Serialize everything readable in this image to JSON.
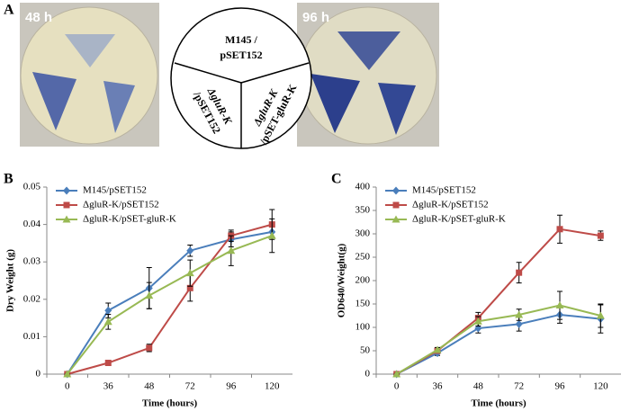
{
  "panel_a": {
    "label": "A",
    "photo_left": "48 h",
    "photo_right": "96 h",
    "sectors": [
      [
        "M145 /",
        "pSET152"
      ],
      [
        "ΔgluR-K",
        "/pSET152"
      ],
      [
        "ΔgluR-K",
        "/pSET-gluR-K"
      ]
    ]
  },
  "chart_data": [
    {
      "type": "line",
      "panel": "B",
      "y_label": "Dry Weight (g)",
      "x_label": "Time (hours)",
      "categories": [
        "0",
        "36",
        "48",
        "72",
        "96",
        "120"
      ],
      "ylim": [
        0,
        0.05
      ],
      "yticks": [
        0,
        0.01,
        0.02,
        0.03,
        0.04,
        0.05
      ],
      "legend": "upper left",
      "series": [
        {
          "name": "M145/pSET152",
          "color": "#4a7ebb",
          "marker": "diamond",
          "values": [
            0,
            0.017,
            0.023,
            0.033,
            0.036,
            0.038
          ],
          "errors": [
            0,
            0.002,
            0.0055,
            0.0015,
            0.002,
            0.0015
          ]
        },
        {
          "name": "ΔgluR-K/pSET152",
          "color": "#be4b48",
          "marker": "square",
          "values": [
            0,
            0.003,
            0.007,
            0.023,
            0.037,
            0.04
          ],
          "errors": [
            0,
            0,
            0.001,
            0.0035,
            0.0015,
            0.004
          ]
        },
        {
          "name": "ΔgluR-K/pSET-gluR-K",
          "color": "#98b954",
          "marker": "triangle",
          "values": [
            0,
            0.014,
            0.021,
            0.027,
            0.033,
            0.037
          ],
          "errors": [
            0,
            0.002,
            0.0035,
            0.0035,
            0.004,
            0.0045
          ]
        }
      ]
    },
    {
      "type": "line",
      "panel": "C",
      "y_label": "OD640/Weight(g)",
      "x_label": "Time (hours)",
      "categories": [
        "0",
        "36",
        "48",
        "72",
        "96",
        "120"
      ],
      "ylim": [
        0,
        400
      ],
      "yticks": [
        0,
        50,
        100,
        150,
        200,
        250,
        300,
        350,
        400
      ],
      "legend": "upper left",
      "series": [
        {
          "name": "M145/pSET152",
          "color": "#4a7ebb",
          "marker": "diamond",
          "values": [
            0,
            45,
            98,
            107,
            127,
            118
          ],
          "errors": [
            0,
            5,
            10,
            15,
            18,
            30
          ]
        },
        {
          "name": "ΔgluR-K/pSET152",
          "color": "#be4b48",
          "marker": "square",
          "values": [
            0,
            50,
            120,
            217,
            310,
            296
          ],
          "errors": [
            0,
            5,
            12,
            22,
            30,
            10
          ]
        },
        {
          "name": "ΔgluR-K/pSET-gluR-K",
          "color": "#98b954",
          "marker": "triangle",
          "values": [
            0,
            52,
            113,
            127,
            147,
            125
          ],
          "errors": [
            0,
            5,
            10,
            12,
            30,
            25
          ]
        }
      ]
    }
  ]
}
